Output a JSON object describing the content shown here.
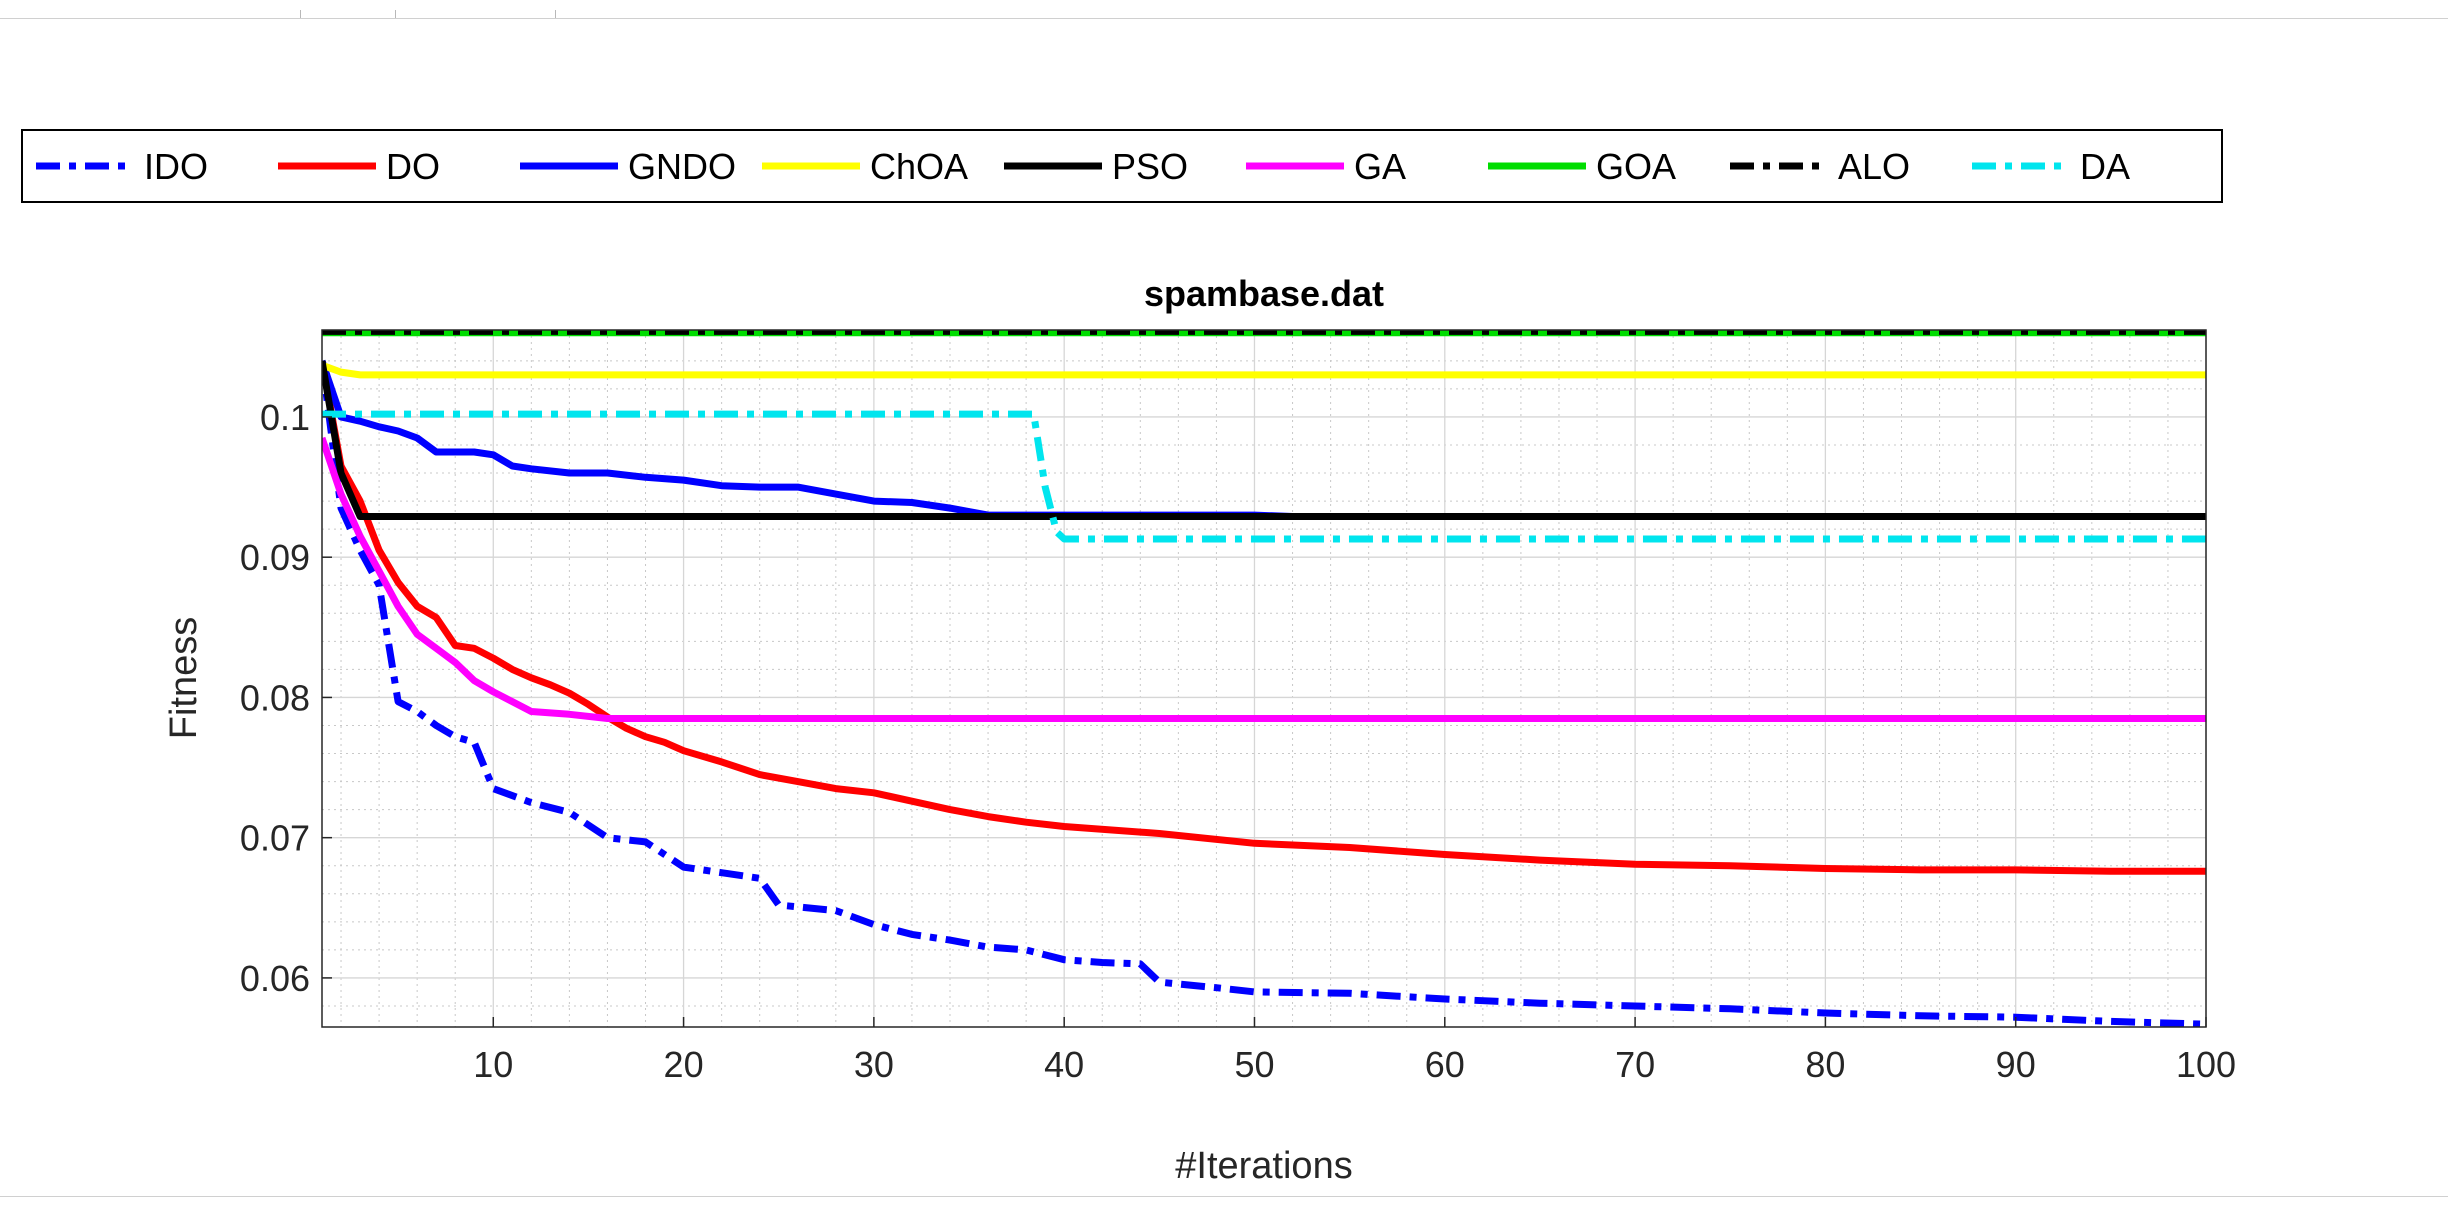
{
  "chart_data": {
    "type": "line",
    "title": "spambase.dat",
    "xlabel": "#Iterations",
    "ylabel": "Fitness",
    "xlim": [
      1,
      100
    ],
    "ylim": [
      0.0565,
      0.1062
    ],
    "xticks": [
      10,
      20,
      30,
      40,
      50,
      60,
      70,
      80,
      90,
      100
    ],
    "xtick_labels": [
      "10",
      "20",
      "30",
      "40",
      "50",
      "60",
      "70",
      "80",
      "90",
      "100"
    ],
    "yticks": [
      0.06,
      0.07,
      0.08,
      0.09,
      0.1
    ],
    "ytick_labels": [
      "0.06",
      "0.07",
      "0.08",
      "0.09",
      "0.1"
    ],
    "grid": true,
    "minor_grid": true,
    "legend_position": "top, outside, horizontal",
    "series": [
      {
        "name": "IDO",
        "color": "#0000ff",
        "style": "dashdot",
        "x": [
          1,
          2,
          3,
          4,
          5,
          6,
          7,
          8,
          9,
          10,
          12,
          14,
          16,
          18,
          20,
          22,
          24,
          25,
          28,
          30,
          32,
          34,
          36,
          38,
          40,
          42,
          44,
          45,
          48,
          50,
          55,
          60,
          65,
          70,
          75,
          80,
          85,
          90,
          95,
          100
        ],
        "y": [
          0.104,
          0.0935,
          0.0905,
          0.088,
          0.0797,
          0.079,
          0.078,
          0.0772,
          0.0768,
          0.0735,
          0.0725,
          0.0718,
          0.07,
          0.0697,
          0.0679,
          0.0675,
          0.0671,
          0.0652,
          0.0648,
          0.0638,
          0.0631,
          0.0627,
          0.0622,
          0.062,
          0.0613,
          0.0611,
          0.061,
          0.0597,
          0.0593,
          0.059,
          0.0589,
          0.0585,
          0.0582,
          0.058,
          0.0578,
          0.0575,
          0.0573,
          0.0572,
          0.0569,
          0.0567
        ]
      },
      {
        "name": "DO",
        "color": "#ff0000",
        "style": "solid",
        "x": [
          1,
          2,
          3,
          4,
          5,
          6,
          7,
          8,
          9,
          10,
          11,
          12,
          13,
          14,
          15,
          16,
          17,
          18,
          19,
          20,
          22,
          24,
          26,
          28,
          30,
          32,
          34,
          36,
          38,
          40,
          45,
          50,
          55,
          60,
          65,
          70,
          75,
          80,
          85,
          90,
          95,
          100
        ],
        "y": [
          0.104,
          0.0965,
          0.094,
          0.0905,
          0.0882,
          0.0865,
          0.0857,
          0.0837,
          0.0835,
          0.0828,
          0.082,
          0.0814,
          0.0809,
          0.0803,
          0.0795,
          0.0786,
          0.0778,
          0.0772,
          0.0768,
          0.0762,
          0.0754,
          0.0745,
          0.074,
          0.0735,
          0.0732,
          0.0726,
          0.072,
          0.0715,
          0.0711,
          0.0708,
          0.0703,
          0.0696,
          0.0693,
          0.0688,
          0.0684,
          0.0681,
          0.068,
          0.0678,
          0.0677,
          0.0677,
          0.0676,
          0.0676
        ]
      },
      {
        "name": "GNDO",
        "color": "#0000ff",
        "style": "solid",
        "x": [
          1,
          2,
          3,
          4,
          5,
          6,
          7,
          8,
          9,
          10,
          11,
          12,
          14,
          16,
          18,
          20,
          22,
          24,
          26,
          28,
          30,
          32,
          34,
          36,
          40,
          45,
          50,
          52,
          55,
          60,
          70,
          80,
          90,
          100
        ],
        "y": [
          0.104,
          0.1,
          0.0997,
          0.0993,
          0.099,
          0.0985,
          0.0975,
          0.0975,
          0.0975,
          0.0973,
          0.0965,
          0.0963,
          0.096,
          0.096,
          0.0957,
          0.0955,
          0.0951,
          0.095,
          0.095,
          0.0945,
          0.094,
          0.0939,
          0.0935,
          0.093,
          0.093,
          0.093,
          0.093,
          0.0929,
          0.0929,
          0.0929,
          0.0929,
          0.0929,
          0.0929,
          0.0929
        ]
      },
      {
        "name": "ChOA",
        "color": "#ffff00",
        "style": "solid",
        "x": [
          1,
          2,
          3,
          100
        ],
        "y": [
          0.1037,
          0.1032,
          0.103,
          0.103
        ]
      },
      {
        "name": "PSO",
        "color": "#000000",
        "style": "solid",
        "x": [
          1,
          2,
          3,
          100
        ],
        "y": [
          0.104,
          0.096,
          0.0929,
          0.0929
        ]
      },
      {
        "name": "GA",
        "color": "#ff00ff",
        "style": "solid",
        "x": [
          1,
          2,
          3,
          4,
          5,
          6,
          7,
          8,
          9,
          10,
          11,
          12,
          14,
          16,
          100
        ],
        "y": [
          0.0985,
          0.0945,
          0.0915,
          0.089,
          0.0865,
          0.0845,
          0.0835,
          0.0825,
          0.0812,
          0.0804,
          0.0797,
          0.079,
          0.0788,
          0.0785,
          0.0785
        ]
      },
      {
        "name": "GOA",
        "color": "#00dd00",
        "style": "solid",
        "x": [
          1,
          100
        ],
        "y": [
          0.106,
          0.106
        ]
      },
      {
        "name": "ALO",
        "color": "#000000",
        "style": "dashdot",
        "x": [
          1,
          100
        ],
        "y": [
          0.1061,
          0.1061
        ]
      },
      {
        "name": "DA",
        "color": "#00e5ee",
        "style": "dashdot",
        "x": [
          1,
          38.4,
          39,
          39.6,
          40,
          100
        ],
        "y": [
          0.1002,
          0.1002,
          0.095,
          0.0918,
          0.0913,
          0.0913
        ]
      }
    ]
  }
}
